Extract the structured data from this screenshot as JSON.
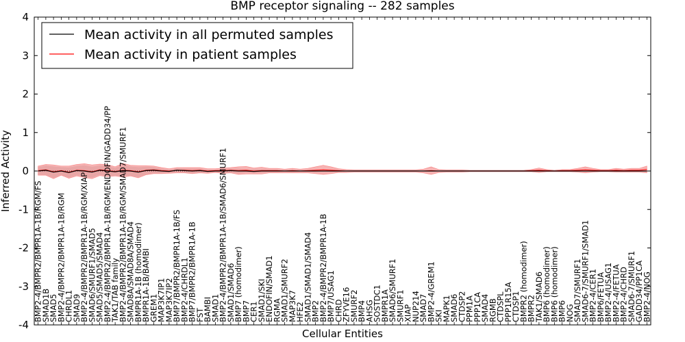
{
  "chart_data": {
    "type": "line",
    "title": "BMP receptor signaling -- 282 samples",
    "xlabel": "Cellular Entities",
    "ylabel": "Inferred Activity",
    "ylim": [
      -4,
      4
    ],
    "yticks": [
      -4,
      -3,
      -2,
      -1,
      0,
      1,
      2,
      3,
      4
    ],
    "grid": false,
    "legend_position": "top-left",
    "colors": {
      "permuted": "#000000",
      "patient": "#ff0000",
      "patient_band": "#f08080",
      "permuted_band": "#c8c8c8"
    },
    "categories": [
      "BMP2-4/BMPR2/BMPR1A-1B/RGM/FS",
      "SMAD1B",
      "SMAD5",
      "BMP2-4/BMPR2/BMPR1A-1B/RGM",
      "CHRDL1",
      "SMAD9",
      "BMP2-4/BMPR2/BMPR1A-1B/RGM/XIAP",
      "SMAD6/SMURF1/SMAD5",
      "SMAD5/SMAD5/SMAD4",
      "BMP2-4/BMPR2/BMPR1A-1B/RGM/ENDOFIN/GADD34/PP",
      "TAK1/TAB family",
      "BMP2-4/BMPR2/BMPR1A-1B/RGM/SMAD7/SMURF1",
      "SMAD8A/SMAD8A/SMAD4",
      "BMPR1A-1B (homodimer)",
      "BMPR1A-1B/BAMBI",
      "GREM1",
      "MAP3K7IP1",
      "MAP3K7IP2",
      "BMP7/BMPR2/BMPR1A-1B/FS",
      "BMP2-4/CHRDL1",
      "BMP7/BMPR2/BMPR1A-1B",
      "FST",
      "BAMBI",
      "SMAD1",
      "BMP2-4/BMPR2/BMPR1A-1B/SMAD6/SMURF1",
      "SMAD1/SMAD6",
      "BMP7 (homodimer)",
      "BMP7",
      "CER1",
      "SMAD1/SKI",
      "ENDOFIN/SMAD1",
      "RGMA",
      "SMAD1/SMURF2",
      "MAP3K7",
      "HFE2",
      "SMAD1/SMAD1/SMAD4",
      "BMP2",
      "BMP2-4/BMPR2/BMPR1A-1B",
      "BMP7/USAG1",
      "CHRD",
      "ZFYVE16",
      "SMURF2",
      "BMP4",
      "AHSG",
      "SOSTDC1",
      "BMPR1A",
      "SMAD6/SMURF1",
      "SMURF1",
      "XIAP",
      "NUP214",
      "SMAD7",
      "BMP2-4/GREM1",
      "SKI",
      "MAPK1",
      "SMAD6",
      "CTDSP2",
      "PPM1A",
      "PPP1CA",
      "SMAD4",
      "RGMB",
      "CTDSPL",
      "PPP1R15A",
      "CTDSP1",
      "BMPR2 (homodimer)",
      "BMPR2",
      "TAK1/SMAD6",
      "BMP6 (homodimer)",
      "BMP6 (homodimer)",
      "BMP6",
      "NOG",
      "SMAD7/SMURF1",
      "SMAD6-7/SMURF1/SMAD1",
      "BMP2-4/CER1",
      "BMP6/FETUA",
      "BMP2-4/USAG1",
      "BMP2-4/FETUA",
      "BMP2-4/CHRD",
      "SMAD6-7/SMURF1",
      "GADD34/PP1CA",
      "BMP2-4/NOG"
    ],
    "series": [
      {
        "name": "Mean activity in all permuted samples",
        "color": "#000000",
        "values": [
          0.0,
          0.02,
          -0.03,
          0.0,
          -0.04,
          0.01,
          0.0,
          -0.03,
          0.02,
          0.0,
          -0.02,
          0.01,
          0.0,
          -0.03,
          0.01,
          0.02,
          0.0,
          -0.01,
          0.02,
          0.01,
          0.0,
          0.01,
          -0.01,
          0.0,
          0.0,
          0.01,
          0.0,
          0.0,
          -0.01,
          0.0,
          0.0,
          0.0,
          0.0,
          0.0,
          0.0,
          0.0,
          0.0,
          0.0,
          0.0,
          0.0,
          0.0,
          0.0,
          0.0,
          0.0,
          0.0,
          0.0,
          0.0,
          0.0,
          0.0,
          0.0,
          0.0,
          0.0,
          0.0,
          0.0,
          0.0,
          0.0,
          0.0,
          0.0,
          0.0,
          0.0,
          0.0,
          0.0,
          0.0,
          0.0,
          0.0,
          0.0,
          0.0,
          0.0,
          0.0,
          0.0,
          0.0,
          0.0,
          0.0,
          0.0,
          0.0,
          0.0,
          0.0,
          0.0,
          0.0,
          0.0
        ],
        "spread": [
          0.1,
          0.12,
          0.15,
          0.1,
          0.13,
          0.12,
          0.15,
          0.14,
          0.12,
          0.13,
          0.1,
          0.15,
          0.12,
          0.13,
          0.1,
          0.08,
          0.06,
          0.04,
          0.05,
          0.05,
          0.06,
          0.05,
          0.04,
          0.03,
          0.05,
          0.05,
          0.06,
          0.04,
          0.05,
          0.05,
          0.04,
          0.04,
          0.03,
          0.04,
          0.03,
          0.03,
          0.04,
          0.03,
          0.03,
          0.03,
          0.02,
          0.02,
          0.02,
          0.02,
          0.02,
          0.02,
          0.02,
          0.02,
          0.02,
          0.02,
          0.02,
          0.02,
          0.02,
          0.02,
          0.02,
          0.02,
          0.02,
          0.02,
          0.02,
          0.02,
          0.02,
          0.02,
          0.02,
          0.02,
          0.02,
          0.02,
          0.02,
          0.02,
          0.02,
          0.02,
          0.02,
          0.02,
          0.02,
          0.02,
          0.02,
          0.02,
          0.02,
          0.02,
          0.02,
          0.02
        ]
      },
      {
        "name": "Mean activity in patient samples",
        "color": "#ff0000",
        "values": [
          0.01,
          0.03,
          -0.02,
          0.01,
          -0.03,
          0.02,
          0.01,
          -0.02,
          0.03,
          0.01,
          -0.01,
          0.02,
          0.01,
          -0.02,
          0.02,
          0.03,
          0.01,
          0.0,
          0.02,
          0.02,
          0.01,
          0.02,
          0.0,
          0.01,
          0.01,
          0.02,
          0.01,
          0.02,
          0.0,
          0.01,
          0.01,
          0.01,
          0.0,
          0.01,
          0.0,
          0.01,
          0.02,
          0.03,
          0.02,
          0.01,
          0.0,
          0.0,
          0.0,
          0.0,
          0.0,
          0.0,
          0.0,
          0.0,
          0.0,
          0.0,
          0.0,
          0.01,
          0.0,
          0.0,
          0.0,
          0.0,
          0.0,
          0.0,
          0.0,
          0.0,
          0.0,
          0.0,
          0.0,
          0.0,
          0.01,
          0.02,
          0.01,
          0.0,
          0.01,
          0.01,
          0.02,
          0.03,
          0.02,
          0.01,
          0.01,
          0.02,
          0.01,
          0.02,
          0.02,
          0.04
        ],
        "spread": [
          0.12,
          0.14,
          0.18,
          0.12,
          0.16,
          0.15,
          0.18,
          0.18,
          0.15,
          0.16,
          0.12,
          0.18,
          0.14,
          0.16,
          0.12,
          0.1,
          0.08,
          0.06,
          0.07,
          0.07,
          0.08,
          0.07,
          0.06,
          0.05,
          0.07,
          0.07,
          0.1,
          0.1,
          0.08,
          0.09,
          0.06,
          0.06,
          0.05,
          0.06,
          0.05,
          0.06,
          0.09,
          0.12,
          0.09,
          0.05,
          0.04,
          0.03,
          0.03,
          0.03,
          0.03,
          0.03,
          0.03,
          0.03,
          0.03,
          0.03,
          0.05,
          0.1,
          0.04,
          0.03,
          0.03,
          0.03,
          0.02,
          0.02,
          0.02,
          0.02,
          0.02,
          0.02,
          0.02,
          0.02,
          0.03,
          0.06,
          0.03,
          0.02,
          0.03,
          0.03,
          0.05,
          0.08,
          0.05,
          0.03,
          0.03,
          0.05,
          0.04,
          0.05,
          0.05,
          0.09
        ]
      }
    ]
  }
}
